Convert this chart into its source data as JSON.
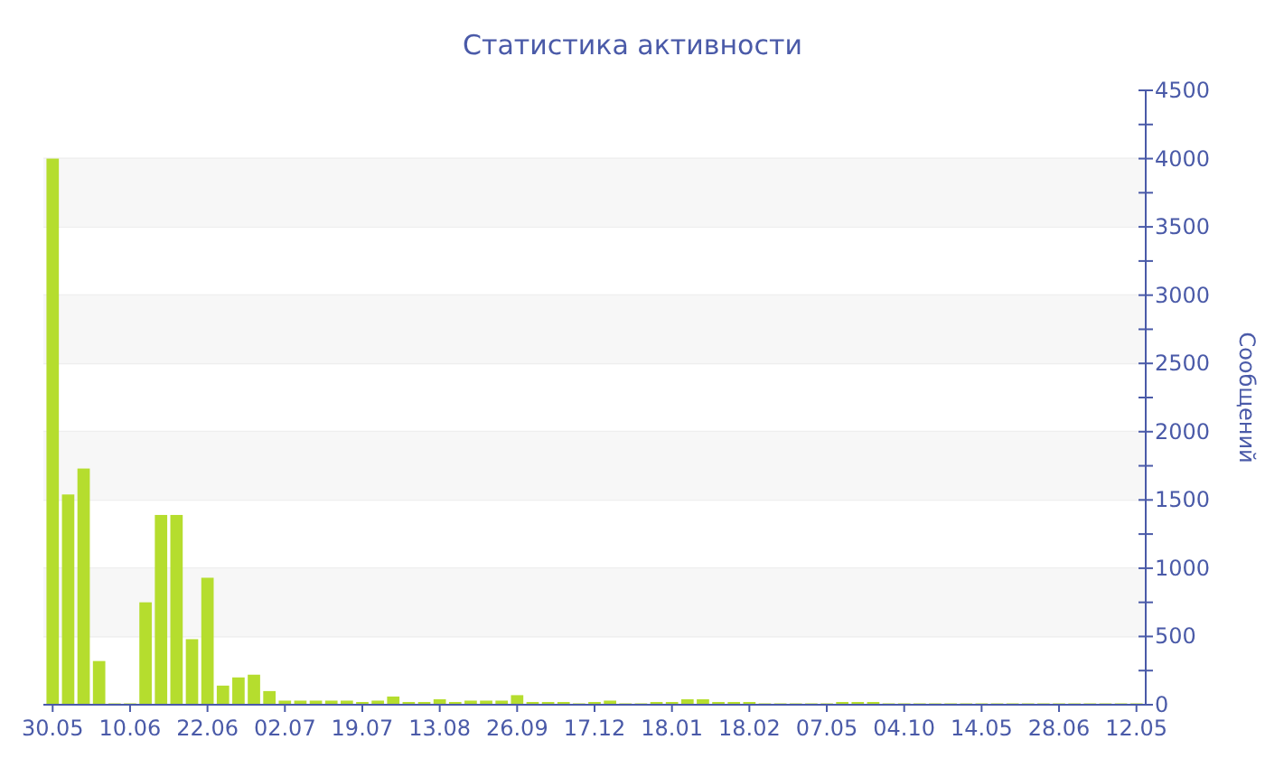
{
  "chart_data": {
    "type": "bar",
    "title": "Статистика активности",
    "ylabel": "Сообщений",
    "categories": [
      "30.05",
      null,
      null,
      null,
      null,
      "10.06",
      null,
      null,
      null,
      null,
      "22.06",
      null,
      null,
      null,
      null,
      "02.07",
      null,
      null,
      null,
      null,
      "19.07",
      null,
      null,
      null,
      null,
      "13.08",
      null,
      null,
      null,
      null,
      "26.09",
      null,
      null,
      null,
      null,
      "17.12",
      null,
      null,
      null,
      null,
      "18.01",
      null,
      null,
      null,
      null,
      "18.02",
      null,
      null,
      null,
      null,
      "07.05",
      null,
      null,
      null,
      null,
      "04.10",
      null,
      null,
      null,
      null,
      "14.05",
      null,
      null,
      null,
      null,
      "28.06",
      null,
      null,
      null,
      null,
      "12.05"
    ],
    "values": [
      4000,
      1540,
      1730,
      320,
      10,
      10,
      750,
      1390,
      1390,
      480,
      930,
      140,
      200,
      220,
      100,
      30,
      30,
      30,
      30,
      30,
      20,
      30,
      60,
      20,
      20,
      40,
      20,
      30,
      30,
      30,
      70,
      20,
      20,
      20,
      10,
      20,
      30,
      10,
      10,
      20,
      20,
      40,
      40,
      20,
      20,
      20,
      10,
      10,
      10,
      10,
      10,
      20,
      20,
      20,
      10,
      10,
      10,
      10,
      10,
      10,
      10,
      10,
      10,
      10,
      10,
      10,
      10,
      10,
      10,
      10,
      10
    ],
    "color": "#b5dd2e",
    "ylim": [
      0,
      4500
    ],
    "yticks": [
      0,
      {
        "value": 250,
        "label": null
      },
      500,
      {
        "value": 750,
        "label": null
      },
      1000,
      {
        "value": 1250,
        "label": null
      },
      1500,
      {
        "value": 1750,
        "label": null
      },
      2000,
      {
        "value": 2250,
        "label": null
      },
      2500,
      {
        "value": 2750,
        "label": null
      },
      3000,
      {
        "value": 3250,
        "label": null
      },
      3500,
      {
        "value": 3750,
        "label": null
      },
      4000,
      {
        "value": 4250,
        "label": null
      },
      4500
    ],
    "grid": "y"
  }
}
